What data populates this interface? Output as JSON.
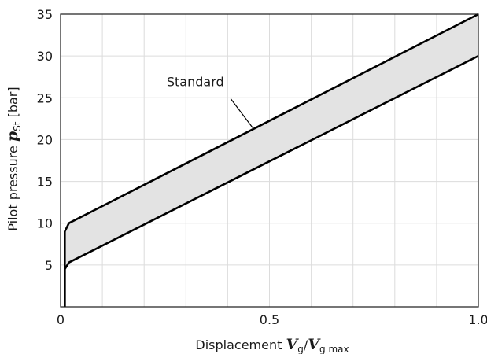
{
  "chart_data": {
    "type": "area",
    "xlabel": {
      "prefix": "Displacement",
      "symbol_main": "V",
      "symbol_sub": "g",
      "separator": "/",
      "symbol2_main": "V",
      "symbol2_sub": "g max"
    },
    "ylabel": {
      "prefix": "Pilot pressure",
      "symbol_main": "p",
      "symbol_sub": "St",
      "unit": "[bar]"
    },
    "xlim": [
      0,
      1.0
    ],
    "ylim": [
      0,
      35
    ],
    "x_ticks": [
      {
        "value": 0,
        "label": "0"
      },
      {
        "value": 0.5,
        "label": "0.5"
      },
      {
        "value": 1.0,
        "label": "1.0"
      }
    ],
    "y_ticks": [
      {
        "value": 5,
        "label": "5"
      },
      {
        "value": 10,
        "label": "10"
      },
      {
        "value": 15,
        "label": "15"
      },
      {
        "value": 20,
        "label": "20"
      },
      {
        "value": 25,
        "label": "25"
      },
      {
        "value": 30,
        "label": "30"
      },
      {
        "value": 35,
        "label": "35"
      }
    ],
    "x_grid_step": 0.1,
    "y_grid_step": 5,
    "grid": true,
    "band_fill_color": "#e3e3e3",
    "series": [
      {
        "color": "#000000",
        "points": [
          [
            0.01,
            0
          ],
          [
            0.01,
            9
          ],
          [
            0.02,
            10
          ],
          [
            1.0,
            35
          ]
        ]
      },
      {
        "color": "#000000",
        "points": [
          [
            0.01,
            0
          ],
          [
            0.01,
            4.5
          ],
          [
            0.02,
            5.3
          ],
          [
            1.0,
            30
          ]
        ]
      }
    ],
    "annotations": [
      {
        "text": "Standard",
        "anchor_x": 0.46,
        "anchor_y": 21.4
      }
    ]
  }
}
